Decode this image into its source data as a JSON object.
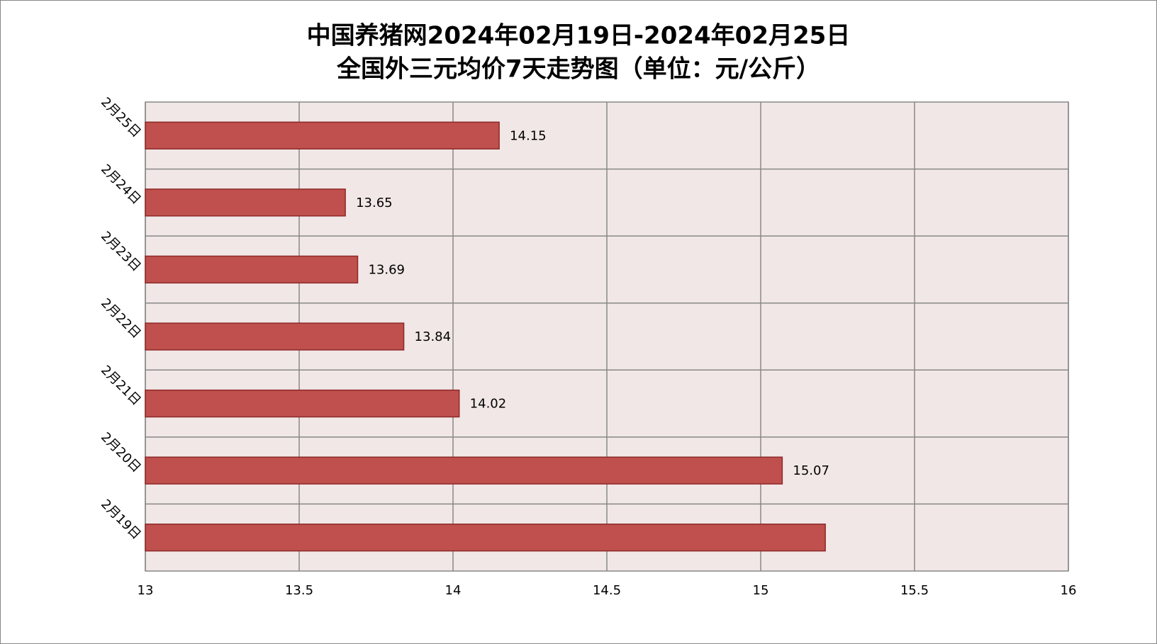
{
  "chart_data": {
    "type": "hbar",
    "title": "中国养猪网2024年02月19日-2024年02月25日",
    "subtitle": "全国外三元均价7天走势图（单位：元/公斤）",
    "categories": [
      "2月19日",
      "2月20日",
      "2月21日",
      "2月22日",
      "2月23日",
      "2月24日",
      "2月25日"
    ],
    "values": [
      15.21,
      15.07,
      14.02,
      13.84,
      13.69,
      13.65,
      14.15
    ],
    "value_labels": [
      null,
      "15.07",
      "14.02",
      "13.84",
      "13.69",
      "13.65",
      "14.15"
    ],
    "color": "#c0504d",
    "xlim": [
      13,
      16
    ],
    "xticks": [
      13,
      13.5,
      14,
      14.5,
      15,
      15.5,
      16
    ],
    "grid": true
  }
}
